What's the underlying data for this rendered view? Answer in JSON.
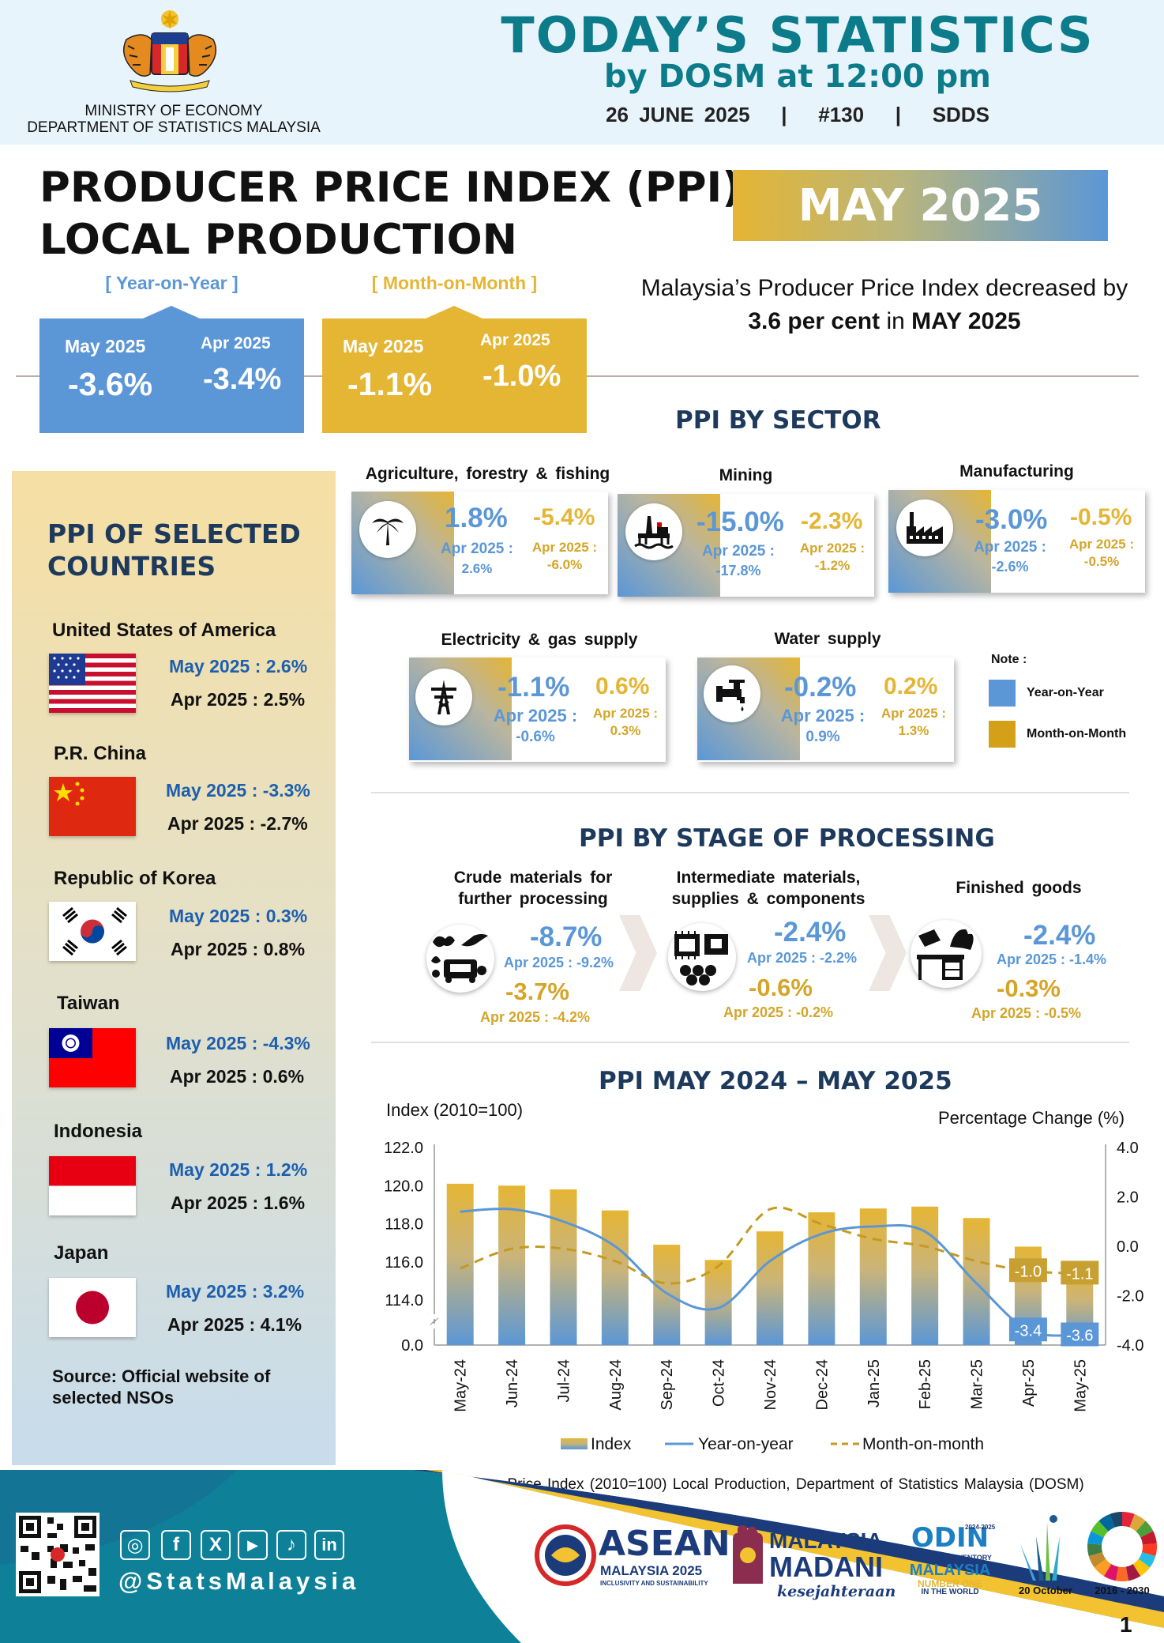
{
  "header": {
    "ministry_line1": "MINISTRY OF ECONOMY",
    "ministry_line2": "DEPARTMENT OF STATISTICS MALAYSIA",
    "title": "TODAY’S STATISTICS",
    "subtitle": "by DOSM at 12:00 pm",
    "meta": "26 JUNE 2025   |   #130   |   SDDS"
  },
  "ppi": {
    "title_line1": "PRODUCER PRICE INDEX (PPI)",
    "title_line2": "LOCAL PRODUCTION",
    "month_banner": "MAY 2025",
    "desc_line1": "Malaysia’s Producer Price Index decreased by",
    "desc_bold1": "3.6 per cent",
    "desc_mid": " in ",
    "desc_bold2": "MAY 2025",
    "yoy_label": "[ Year-on-Year ]",
    "mom_label": "[ Month-on-Month ]",
    "yoy": {
      "may_label": "May 2025",
      "may_value": "-3.6%",
      "apr_label": "Apr 2025",
      "apr_value": "-3.4%"
    },
    "mom": {
      "may_label": "May 2025",
      "may_value": "-1.1%",
      "apr_label": "Apr 2025",
      "apr_value": "-1.0%"
    }
  },
  "countries": {
    "title_line1": "PPI OF SELECTED",
    "title_line2": "COUNTRIES",
    "items": [
      {
        "name": "United States of America",
        "may": "May 2025 : 2.6%",
        "apr": "Apr 2025 : 2.5%"
      },
      {
        "name": "P.R. China",
        "may": "May 2025 : -3.3%",
        "apr": "Apr 2025 : -2.7%"
      },
      {
        "name": "Republic of Korea",
        "may": "May 2025 : 0.3%",
        "apr": "Apr 2025 : 0.8%"
      },
      {
        "name": "Taiwan",
        "may": "May 2025 : -4.3%",
        "apr": "Apr 2025 : 0.6%"
      },
      {
        "name": "Indonesia",
        "may": "May 2025 : 1.2%",
        "apr": "Apr 2025 : 1.6%"
      },
      {
        "name": "Japan",
        "may": "May 2025 : 3.2%",
        "apr": "Apr 2025 : 4.1%"
      }
    ],
    "source_line1": "Source: Official website of",
    "source_line2": "selected NSOs"
  },
  "sector": {
    "heading": "PPI BY SECTOR",
    "items": [
      {
        "name": "Agriculture, forestry & fishing",
        "icon": "palm-tree-icon",
        "yoy": "1.8%",
        "yoy_apr_label": "Apr 2025 :",
        "yoy_apr": "2.6%",
        "mom": "-5.4%",
        "mom_apr_label": "Apr 2025 :",
        "mom_apr": "-6.0%"
      },
      {
        "name": "Mining",
        "icon": "oil-rig-icon",
        "yoy": "-15.0%",
        "yoy_apr_label": "Apr 2025 :",
        "yoy_apr": "-17.8%",
        "mom": "-2.3%",
        "mom_apr_label": "Apr 2025 :",
        "mom_apr": "-1.2%"
      },
      {
        "name": "Manufacturing",
        "icon": "factory-icon",
        "yoy": "-3.0%",
        "yoy_apr_label": "Apr 2025 :",
        "yoy_apr": "-2.6%",
        "mom": "-0.5%",
        "mom_apr_label": "Apr 2025 :",
        "mom_apr": "-0.5%"
      },
      {
        "name": "Electricity & gas supply",
        "icon": "pylon-icon",
        "yoy": "-1.1%",
        "yoy_apr_label": "Apr 2025 :",
        "yoy_apr": "-0.6%",
        "mom": "0.6%",
        "mom_apr_label": "Apr 2025 :",
        "mom_apr": "0.3%"
      },
      {
        "name": "Water supply",
        "icon": "tap-icon",
        "yoy": "-0.2%",
        "yoy_apr_label": "Apr 2025 :",
        "yoy_apr": "0.9%",
        "mom": "0.2%",
        "mom_apr_label": "Apr 2025 :",
        "mom_apr": "1.3%"
      }
    ],
    "note_title": "Note :",
    "note_yoy": "Year-on-Year",
    "note_mom": "Month-on-Month",
    "colors": {
      "yoy": "#5b97d6",
      "mom": "#e5b534"
    }
  },
  "stage": {
    "heading": "PPI BY STAGE OF PROCESSING",
    "items": [
      {
        "name_line1": "Crude materials for",
        "name_line2": "further processing",
        "icon": "crude-materials-icon",
        "yoy": "-8.7%",
        "yoy_apr": "Apr 2025 : -9.2%",
        "mom": "-3.7%",
        "mom_apr": "Apr 2025 : -4.2%"
      },
      {
        "name_line1": "Intermediate materials,",
        "name_line2": "supplies & components",
        "icon": "intermediate-materials-icon",
        "yoy": "-2.4%",
        "yoy_apr": "Apr 2025 : -2.2%",
        "mom": "-0.6%",
        "mom_apr": "Apr 2025 : -0.2%"
      },
      {
        "name_line1": "Finished goods",
        "name_line2": "",
        "icon": "finished-goods-icon",
        "yoy": "-2.4%",
        "yoy_apr": "Apr 2025 : -1.4%",
        "mom": "-0.3%",
        "mom_apr": "Apr 2025 : -0.5%"
      }
    ]
  },
  "chart_data": {
    "type": "bar",
    "title": "PPI MAY 2024 – MAY 2025",
    "ylabel": "Index (2010=100)",
    "y2label": "Percentage Change (%)",
    "categories": [
      "May-24",
      "Jun-24",
      "Jul-24",
      "Aug-24",
      "Sep-24",
      "Oct-24",
      "Nov-24",
      "Dec-24",
      "Jan-25",
      "Feb-25",
      "Mar-25",
      "Apr-25",
      "May-25"
    ],
    "ylim": [
      114.0,
      122.0
    ],
    "y_ticks": [
      "122.0",
      "120.0",
      "118.0",
      "116.0",
      "114.0",
      "0.0"
    ],
    "y_break": true,
    "y2lim": [
      -4.0,
      4.0
    ],
    "y2_ticks": [
      "4.0",
      "2.0",
      "0.0",
      "-2.0",
      "-4.0"
    ],
    "series": [
      {
        "name": "Index",
        "axis": "left",
        "type": "bar",
        "values": [
          120.1,
          120.0,
          119.8,
          118.7,
          116.9,
          116.1,
          117.6,
          118.6,
          118.8,
          118.9,
          118.3,
          116.8,
          115.8
        ]
      },
      {
        "name": "Year-on-year",
        "axis": "right",
        "type": "line",
        "style": "solid",
        "values": [
          1.4,
          1.5,
          1.0,
          0.0,
          -1.9,
          -2.5,
          -0.6,
          0.5,
          0.8,
          0.6,
          -1.5,
          -3.4,
          -3.6
        ]
      },
      {
        "name": "Month-on-month",
        "axis": "right",
        "type": "line",
        "style": "dashed",
        "values": [
          -0.9,
          -0.1,
          -0.1,
          -0.6,
          -1.5,
          -0.8,
          1.5,
          0.9,
          0.3,
          -0.0,
          -0.6,
          -1.0,
          -1.1
        ]
      }
    ],
    "data_labels": [
      {
        "series": "Month-on-month",
        "category": "Apr-25",
        "text": "-1.0"
      },
      {
        "series": "Month-on-month",
        "category": "May-25",
        "text": "-1.1"
      },
      {
        "series": "Year-on-year",
        "category": "Apr-25",
        "text": "-3.4"
      },
      {
        "series": "Year-on-year",
        "category": "May-25",
        "text": "-3.6"
      }
    ],
    "legend": "bottom",
    "grid": false,
    "colors": {
      "bar_top": "#e5b534",
      "bar_bottom": "#5b97d6",
      "yoy": "#5b97d6",
      "mom": "#c49a22"
    }
  },
  "chart_source": "Source : Producer Price Index (2010=100) Local Production, Department of Statistics Malaysia (DOSM)",
  "footer": {
    "handle": "@StatsMalaysia",
    "social_icons": [
      "instagram-icon",
      "facebook-icon",
      "x-icon",
      "youtube-icon",
      "tiktok-icon",
      "linkedin-icon"
    ],
    "social_glyphs": [
      "◎",
      "f",
      "X",
      "▶",
      "♪",
      "in"
    ],
    "asean_title": "ASEAN",
    "asean_sub": "MALAYSIA 2025",
    "asean_tag": "INCLUSIVITY AND SUSTAINABILITY",
    "madani_line1": "MALAYSIA",
    "madani_line2": "MADANI",
    "madani_tag": "kesejahteraan",
    "odin_title": "ODIN",
    "odin_years": "2024-2025",
    "odin_line1": "OPEN DATA INVENTORY",
    "odin_line2": "MALAYSIA",
    "odin_line3": "NUMBER ONE",
    "odin_line4": "IN THE WORLD",
    "wsd_date": "20 October",
    "sdg_years": "2016 - 2030",
    "page_number": "1"
  }
}
